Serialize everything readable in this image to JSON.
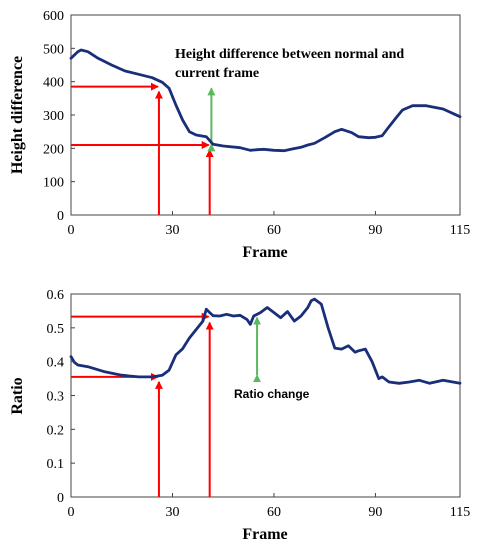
{
  "chart_data": [
    {
      "type": "line",
      "xlabel": "Frame",
      "ylabel": "Height difference",
      "xlim": [
        0,
        115
      ],
      "ylim": [
        0,
        600
      ],
      "xticks": [
        0,
        30,
        60,
        90,
        115
      ],
      "yticks": [
        0,
        100,
        200,
        300,
        400,
        500,
        600
      ],
      "grid": false,
      "series": [
        {
          "color": "#1a2f7a",
          "x": [
            0,
            2,
            3,
            5,
            8,
            12,
            16,
            20,
            24,
            27,
            29,
            31,
            33,
            35,
            37,
            40,
            42,
            45,
            50,
            53,
            55,
            57,
            60,
            63,
            65,
            68,
            70,
            72,
            75,
            78,
            80,
            83,
            85,
            88,
            90,
            92,
            94,
            96,
            98,
            101,
            105,
            110,
            115
          ],
          "y": [
            470,
            490,
            495,
            490,
            470,
            450,
            432,
            422,
            412,
            398,
            380,
            330,
            285,
            250,
            240,
            235,
            212,
            207,
            202,
            194,
            196,
            197,
            194,
            193,
            197,
            203,
            210,
            215,
            232,
            250,
            257,
            247,
            235,
            232,
            233,
            238,
            265,
            290,
            315,
            328,
            328,
            318,
            295
          ]
        }
      ],
      "annotations": [
        {
          "text_lines": [
            "Height difference between normal and",
            "current frame"
          ],
          "x": 31,
          "y": 470
        }
      ],
      "reference_lines": [
        {
          "type": "vline",
          "x": 26,
          "y0": 0,
          "y1": 385,
          "color": "#ff0000"
        },
        {
          "type": "vline",
          "x": 41,
          "y0": 0,
          "y1": 210,
          "color": "#ff0000"
        },
        {
          "type": "hline",
          "y": 385,
          "x0": 0,
          "x1": 26,
          "color": "#ff0000"
        },
        {
          "type": "hline",
          "y": 210,
          "x0": 0,
          "x1": 41,
          "color": "#ff0000"
        },
        {
          "type": "double_arrow",
          "x": 41.5,
          "y0": 212,
          "y1": 380,
          "color": "#5cb85c"
        }
      ]
    },
    {
      "type": "line",
      "xlabel": "Frame",
      "ylabel": "Ratio",
      "xlim": [
        0,
        115
      ],
      "ylim": [
        0,
        0.6
      ],
      "xticks": [
        0,
        30,
        60,
        90,
        115
      ],
      "yticks": [
        0,
        0.1,
        0.2,
        0.3,
        0.4,
        0.5,
        0.6
      ],
      "grid": false,
      "series": [
        {
          "color": "#1a2f7a",
          "x": [
            0,
            1,
            2,
            5,
            10,
            15,
            20,
            24,
            27,
            29,
            31,
            33,
            35,
            37,
            39,
            40,
            41,
            42,
            44,
            46,
            48,
            50,
            52,
            53,
            54,
            56,
            58,
            60,
            62,
            64,
            66,
            68,
            70,
            71,
            72,
            74,
            76,
            78,
            80,
            82,
            84,
            85,
            87,
            89,
            91,
            92,
            94,
            97,
            100,
            103,
            106,
            110,
            115
          ],
          "y": [
            0.415,
            0.398,
            0.39,
            0.385,
            0.37,
            0.36,
            0.355,
            0.355,
            0.36,
            0.375,
            0.42,
            0.438,
            0.47,
            0.495,
            0.52,
            0.555,
            0.545,
            0.536,
            0.535,
            0.54,
            0.535,
            0.537,
            0.525,
            0.51,
            0.535,
            0.545,
            0.56,
            0.545,
            0.53,
            0.548,
            0.52,
            0.535,
            0.56,
            0.58,
            0.585,
            0.57,
            0.5,
            0.44,
            0.437,
            0.447,
            0.428,
            0.432,
            0.437,
            0.4,
            0.35,
            0.355,
            0.34,
            0.336,
            0.34,
            0.345,
            0.336,
            0.345,
            0.336
          ]
        }
      ],
      "annotations": [
        {
          "text": "Ratio change",
          "x": 48,
          "y": 0.35
        }
      ],
      "reference_lines": [
        {
          "type": "vline",
          "x": 26,
          "y0": 0,
          "y1": 0.355,
          "color": "#ff0000"
        },
        {
          "type": "vline",
          "x": 41,
          "y0": 0,
          "y1": 0.53,
          "color": "#ff0000"
        },
        {
          "type": "hline",
          "y": 0.355,
          "x0": 0,
          "x1": 26,
          "color": "#ff0000"
        },
        {
          "type": "hline",
          "y": 0.533,
          "x0": 0,
          "x1": 41,
          "color": "#ff0000"
        },
        {
          "type": "double_arrow",
          "x": 55,
          "y0": 0.36,
          "y1": 0.53,
          "color": "#5cb85c"
        }
      ]
    }
  ]
}
